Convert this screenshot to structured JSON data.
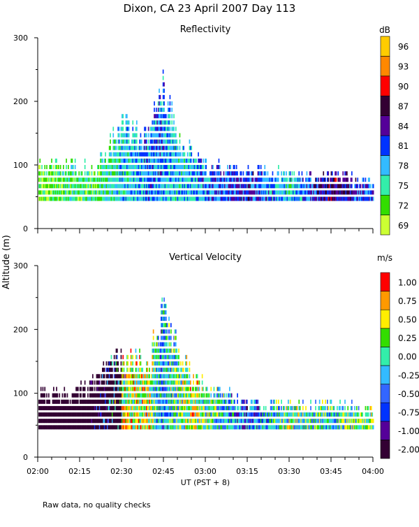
{
  "title": "Dixon, CA 23 April 2007  Day 113",
  "footnote": "Raw data, no quality checks",
  "shared_ylabel": "Altitude (m)",
  "shared_xlabel": "UT  (PST + 8)",
  "chart_data": [
    {
      "type": "heatmap",
      "title": "Reflectivity",
      "ylim": [
        0,
        300
      ],
      "yticks": [
        "0",
        "100",
        "200",
        "300"
      ],
      "xticks": [
        "02:00",
        "02:15",
        "02:30",
        "02:45",
        "03:00",
        "03:15",
        "03:30",
        "03:45",
        "04:00"
      ],
      "colorbar": {
        "unit": "dB",
        "labels": [
          "69",
          "72",
          "75",
          "78",
          "81",
          "84",
          "87",
          "90",
          "93",
          "96"
        ],
        "colors": [
          "#ccff33",
          "#33dd00",
          "#33eeaa",
          "#33bbff",
          "#0033ff",
          "#550099",
          "#330033",
          "#ff0000",
          "#ff8800",
          "#ffcc00"
        ]
      },
      "sampled_columns": [
        {
          "time": "02:00",
          "top_m": 100,
          "dB": 72
        },
        {
          "time": "02:10",
          "top_m": 100,
          "dB": 75
        },
        {
          "time": "02:20",
          "top_m": 90,
          "dB": 75
        },
        {
          "time": "02:30",
          "top_m": 160,
          "dB": 78
        },
        {
          "time": "02:40",
          "top_m": 150,
          "dB": 81
        },
        {
          "time": "02:44",
          "top_m": 240,
          "dB": 81
        },
        {
          "time": "02:50",
          "top_m": 140,
          "dB": 78
        },
        {
          "time": "03:00",
          "top_m": 100,
          "dB": 81
        },
        {
          "time": "03:15",
          "top_m": 90,
          "dB": 84
        },
        {
          "time": "03:30",
          "top_m": 80,
          "dB": 78
        },
        {
          "time": "03:45",
          "top_m": 80,
          "dB": 87
        },
        {
          "time": "04:00",
          "top_m": 70,
          "dB": 81
        }
      ]
    },
    {
      "type": "heatmap",
      "title": "Vertical Velocity",
      "ylim": [
        0,
        300
      ],
      "yticks": [
        "0",
        "100",
        "200",
        "300"
      ],
      "xticks": [
        "02:00",
        "02:15",
        "02:30",
        "02:45",
        "03:00",
        "03:15",
        "03:30",
        "03:45",
        "04:00"
      ],
      "colorbar": {
        "unit": "m/s",
        "labels": [
          "-2.00",
          "-1.00",
          "-0.75",
          "-0.50",
          "-0.25",
          "0.00",
          "0.25",
          "0.50",
          "0.75",
          "1.00"
        ],
        "colors": [
          "#330033",
          "#550099",
          "#0033ff",
          "#3366ff",
          "#33bbff",
          "#33eeaa",
          "#33dd00",
          "#ffee00",
          "#ff9900",
          "#ff0000"
        ]
      },
      "sampled_columns": [
        {
          "time": "02:00",
          "top_m": 100,
          "m_s": -2.0
        },
        {
          "time": "02:15",
          "top_m": 100,
          "m_s": -2.0
        },
        {
          "time": "02:30",
          "top_m": 160,
          "m_s": 0.5
        },
        {
          "time": "02:40",
          "top_m": 150,
          "m_s": 0.5
        },
        {
          "time": "02:44",
          "top_m": 240,
          "m_s": -0.25
        },
        {
          "time": "02:55",
          "top_m": 120,
          "m_s": 0.5
        },
        {
          "time": "03:15",
          "top_m": 80,
          "m_s": -0.5
        },
        {
          "time": "03:30",
          "top_m": 80,
          "m_s": 0.25
        },
        {
          "time": "03:45",
          "top_m": 80,
          "m_s": 0.0
        },
        {
          "time": "04:00",
          "top_m": 70,
          "m_s": 0.25
        }
      ]
    }
  ]
}
